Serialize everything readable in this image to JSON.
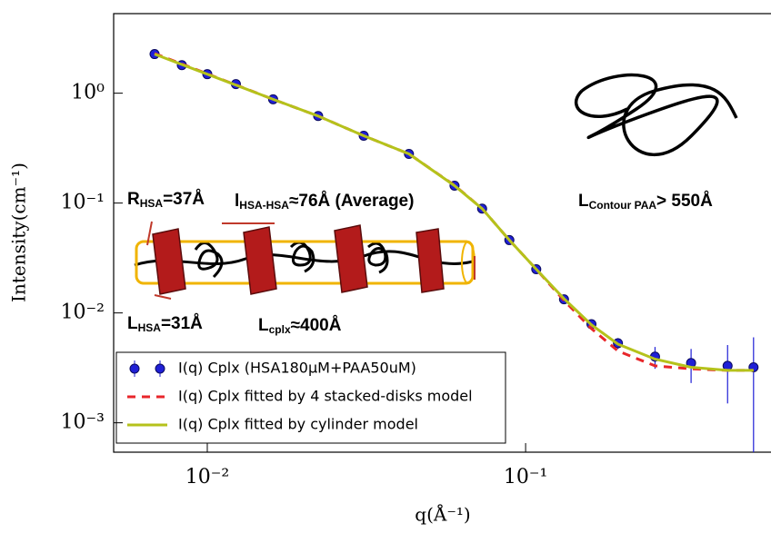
{
  "chart_data": {
    "type": "line",
    "xlabel": "q(Å⁻¹)",
    "ylabel": "Intensity(cm⁻¹)",
    "xlog": true,
    "ylog": true,
    "xlim": [
      0.00508,
      0.59
    ],
    "ylim": [
      0.00054,
      5.3
    ],
    "xticks": [
      {
        "value": 0.01,
        "label": "10⁻²"
      },
      {
        "value": 0.1,
        "label": "10⁻¹"
      }
    ],
    "yticks": [
      {
        "value": 0.001,
        "label": "10⁻³"
      },
      {
        "value": 0.01,
        "label": "10⁻²"
      },
      {
        "value": 0.1,
        "label": "10⁻¹"
      },
      {
        "value": 1,
        "label": "10⁰"
      }
    ],
    "legend": "lower left",
    "series": [
      {
        "name": "I(q) Cplx (HSA180μM+PAA50uM)",
        "type": "scatter",
        "color": "#1f1fd6",
        "x": [
          0.00683,
          0.00832,
          0.01,
          0.0123,
          0.0161,
          0.0223,
          0.031,
          0.043,
          0.0598,
          0.073,
          0.0889,
          0.108,
          0.132,
          0.161,
          0.195,
          0.255,
          0.331,
          0.431,
          0.52
        ],
        "values": [
          2.27,
          1.8,
          1.49,
          1.21,
          0.88,
          0.62,
          0.41,
          0.28,
          0.144,
          0.089,
          0.046,
          0.025,
          0.0133,
          0.0079,
          0.0053,
          0.004,
          0.0035,
          0.0033,
          0.0032
        ],
        "errors": [
          0.02,
          0.02,
          0.015,
          0.012,
          0.008,
          0.006,
          0.004,
          0.003,
          0.0015,
          0.001,
          0.0006,
          0.0004,
          0.0003,
          0.0004,
          0.0006,
          0.0009,
          0.0012,
          0.0018,
          0.0028
        ]
      },
      {
        "name": "I(q) Cplx fitted by 4 stacked-disks model",
        "type": "line",
        "color": "#e8262a",
        "dash": true,
        "x": [
          0.00683,
          0.01,
          0.0161,
          0.0223,
          0.031,
          0.043,
          0.0598,
          0.073,
          0.0889,
          0.108,
          0.132,
          0.161,
          0.195,
          0.255,
          0.331,
          0.431,
          0.52
        ],
        "values": [
          2.3,
          1.5,
          0.88,
          0.62,
          0.41,
          0.28,
          0.145,
          0.089,
          0.046,
          0.025,
          0.013,
          0.0072,
          0.0045,
          0.0033,
          0.0031,
          0.003,
          0.003
        ]
      },
      {
        "name": "I(q) Cplx fitted by cylinder model",
        "type": "line",
        "color": "#b5c21b",
        "dash": false,
        "x": [
          0.00683,
          0.01,
          0.0161,
          0.0223,
          0.031,
          0.043,
          0.0598,
          0.073,
          0.0889,
          0.108,
          0.132,
          0.161,
          0.195,
          0.255,
          0.331,
          0.431,
          0.52
        ],
        "values": [
          2.27,
          1.49,
          0.88,
          0.62,
          0.41,
          0.28,
          0.144,
          0.089,
          0.046,
          0.025,
          0.0135,
          0.0078,
          0.0052,
          0.0038,
          0.0032,
          0.003,
          0.003
        ]
      }
    ],
    "annotations": [
      {
        "text": "R",
        "sub": "HSA",
        "rest": "=37Å"
      },
      {
        "text": "l",
        "sub": "HSA-HSA",
        "rest": "≈76Å (Average)"
      },
      {
        "text": "L",
        "sub": "Contour PAA",
        "rest": "> 550Å"
      },
      {
        "text": "L",
        "sub": "HSA",
        "rest": "=31Å"
      },
      {
        "text": "L",
        "sub": "cplx",
        "rest": "≈400Å"
      }
    ]
  }
}
